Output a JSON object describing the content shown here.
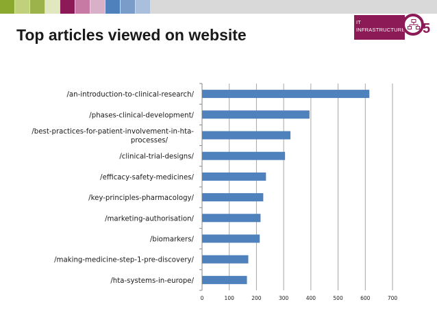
{
  "slide": {
    "title": "Top articles viewed on website",
    "swatch_colors": [
      "#8ba82f",
      "#c1d07b",
      "#9cb24a",
      "#e1e8c0",
      "#8b1a56",
      "#c77aa3",
      "#d8b0c8",
      "#4f81bd",
      "#7a9cc9",
      "#aabfdc"
    ]
  },
  "logo": {
    "line1": "IT",
    "line2": "INFRASTRUCTURE",
    "color": "#8b1a56"
  },
  "chart_data": {
    "type": "bar",
    "orientation": "horizontal",
    "categories": [
      "/an-introduction-to-clinical-research/",
      "/phases-clinical-development/",
      "/best-practices-for-patient-involvement-in-hta-processes/",
      "/clinical-trial-designs/",
      "/efficacy-safety-medicines/",
      "/key-principles-pharmacology/",
      "/marketing-authorisation/",
      "/biomarkers/",
      "/making-medicine-step-1-pre-discovery/",
      "/hta-systems-in-europe/"
    ],
    "category_label_lines": [
      [
        "/an-introduction-to-clinical-research/"
      ],
      [
        "/phases-clinical-development/"
      ],
      [
        "/best-practices-for-patient-involvement-in-hta-",
        "processes/"
      ],
      [
        "/clinical-trial-designs/"
      ],
      [
        "/efficacy-safety-medicines/"
      ],
      [
        "/key-principles-pharmacology/"
      ],
      [
        "/marketing-authorisation/"
      ],
      [
        "/biomarkers/"
      ],
      [
        "/making-medicine-step-1-pre-discovery/"
      ],
      [
        "/hta-systems-in-europe/"
      ]
    ],
    "values": [
      615,
      395,
      325,
      305,
      235,
      225,
      215,
      212,
      170,
      165
    ],
    "xlim": [
      0,
      700
    ],
    "xticks": [
      "0",
      "100",
      "200",
      "300",
      "400",
      "500",
      "600",
      "700"
    ],
    "grid": true,
    "legend": "none",
    "bar_color": "#4f81bd",
    "title": "",
    "xlabel": "",
    "ylabel": ""
  }
}
